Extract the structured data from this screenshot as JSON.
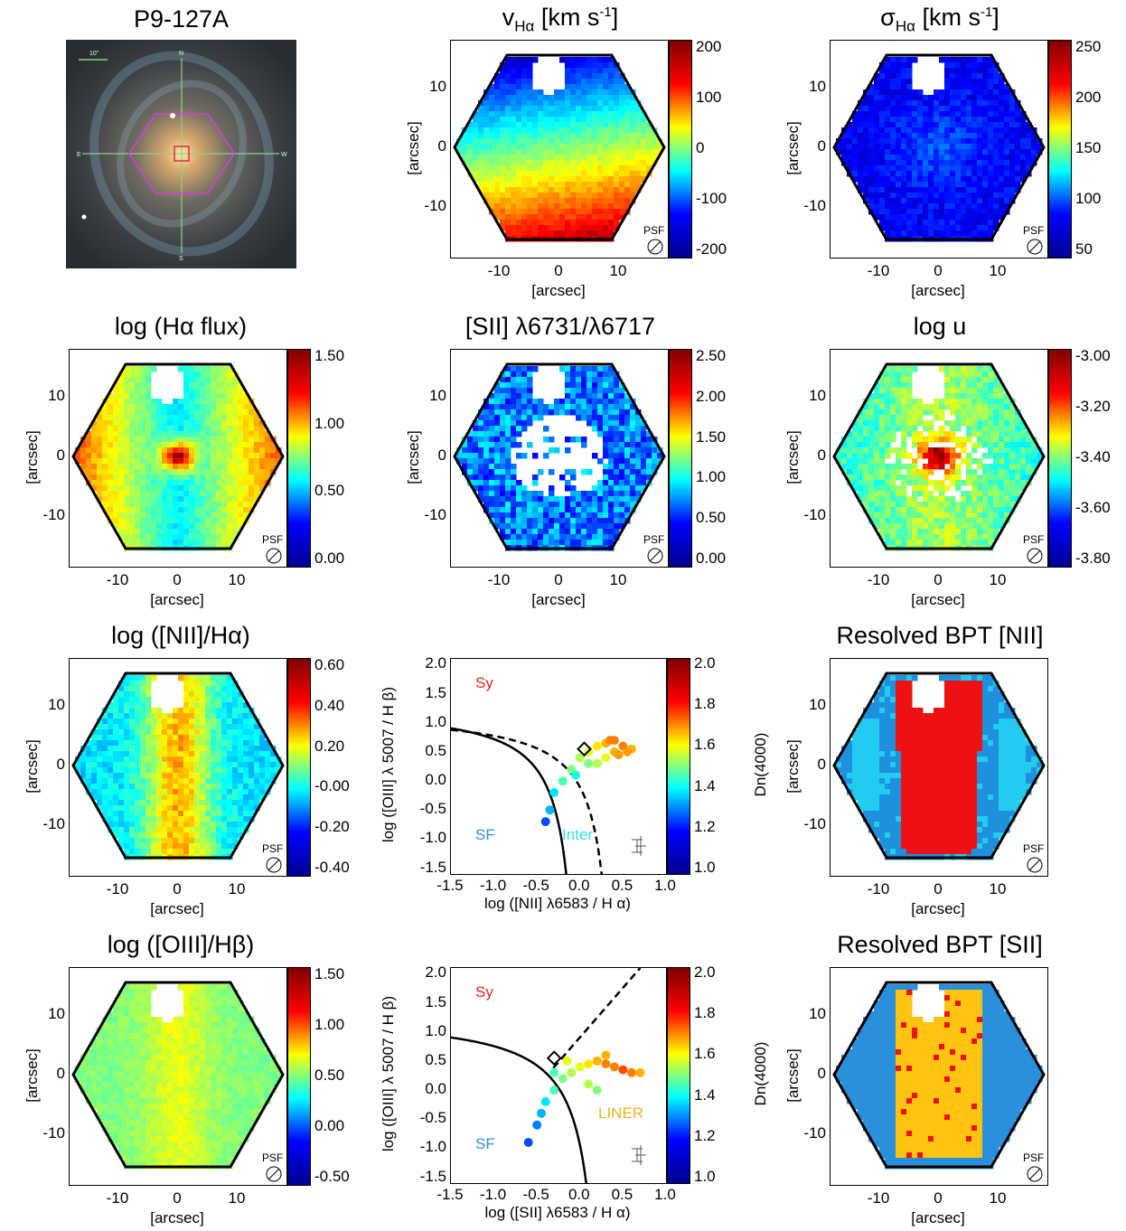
{
  "figure": {
    "thumbnail": {
      "title": "P9-127A",
      "scale_label": "10\"",
      "compass": {
        "n": "N",
        "s": "S",
        "e": "E",
        "w": "W"
      }
    },
    "axes_common": {
      "arcsec_label": "[arcsec]",
      "x_ticks": [
        "-10",
        "0",
        "10"
      ],
      "y_ticks": [
        "10",
        "0",
        "-10"
      ],
      "psf_label": "PSF"
    },
    "maps": [
      {
        "key": "vel",
        "title_main": "v",
        "title_sub": "Hα",
        "title_rest": " [km s",
        "title_sup": "-1",
        "title_end": "]",
        "cbar_ticks": [
          "200",
          "100",
          "0",
          "-100",
          "-200"
        ],
        "show_x_axis": true
      },
      {
        "key": "sigma",
        "title_main": "σ",
        "title_sub": "Hα",
        "title_rest": " [km s",
        "title_sup": "-1",
        "title_end": "]",
        "cbar_ticks": [
          "250",
          "200",
          "150",
          "100",
          "50"
        ],
        "show_x_axis": true
      },
      {
        "key": "haflux",
        "title_main": "log (Hα flux)",
        "cbar_ticks": [
          "1.50",
          "1.00",
          "0.50",
          "0.00"
        ],
        "show_x_axis": true
      },
      {
        "key": "sii",
        "title_main": "[SII] λ6731/λ6717",
        "cbar_ticks": [
          "2.50",
          "2.00",
          "1.50",
          "1.00",
          "0.50",
          "0.00"
        ],
        "show_x_axis": true
      },
      {
        "key": "logu",
        "title_main": "log u",
        "cbar_ticks": [
          "-3.00",
          "-3.20",
          "-3.40",
          "-3.60",
          "-3.80"
        ],
        "show_x_axis": true
      },
      {
        "key": "nii",
        "title_main": "log ([NII]/Hα)",
        "cbar_ticks": [
          "0.60",
          "0.40",
          "0.20",
          "-0.00",
          "-0.20",
          "-0.40"
        ],
        "show_x_axis": true
      },
      {
        "key": "bptnii",
        "title_main": "Resolved BPT [NII]",
        "show_x_axis": true
      },
      {
        "key": "oiii",
        "title_main": "log ([OIII]/Hβ)",
        "cbar_ticks": [
          "1.50",
          "1.00",
          "0.50",
          "0.00",
          "-0.50"
        ],
        "show_x_axis": true
      },
      {
        "key": "bptsii",
        "title_main": "Resolved BPT [SII]",
        "show_x_axis": true
      }
    ],
    "bpt_plots": [
      {
        "key": "bpt1",
        "xlabel": "log ([NII] λ6583 / H α)",
        "ylabel": "log ([OIII] λ 5007 / H β)",
        "cbar_label": "Dn(4000)",
        "cbar_ticks": [
          "2.0",
          "1.8",
          "1.6",
          "1.4",
          "1.2",
          "1.0"
        ],
        "x_ticks": [
          "-1.5",
          "-1.0",
          "-0.5",
          "0.0",
          "0.5",
          "1.0"
        ],
        "y_ticks": [
          "2.0",
          "1.5",
          "1.0",
          "0.5",
          "0.0",
          "-0.5",
          "-1.0",
          "-1.5"
        ],
        "labels": {
          "sy": "Sy",
          "sf": "SF",
          "third": "Inter"
        }
      },
      {
        "key": "bpt2",
        "xlabel": "log ([SII] λ6583 / H α)",
        "ylabel": "log ([OIII] λ 5007 / H β)",
        "cbar_label": "Dn(4000)",
        "cbar_ticks": [
          "2.0",
          "1.8",
          "1.6",
          "1.4",
          "1.2",
          "1.0"
        ],
        "x_ticks": [
          "-1.5",
          "-1.0",
          "-0.5",
          "0.0",
          "0.5",
          "1.0"
        ],
        "y_ticks": [
          "2.0",
          "1.5",
          "1.0",
          "0.5",
          "0.0",
          "-0.5",
          "-1.0",
          "-1.5"
        ],
        "labels": {
          "sy": "Sy",
          "sf": "SF",
          "third": "LINER"
        }
      }
    ]
  },
  "chart_data": [
    {
      "type": "scatter",
      "xlabel": "log ([NII] λ6583 / H α)",
      "ylabel": "log ([OIII] λ 5007 / H β)",
      "xlim": [
        -1.5,
        1.0
      ],
      "ylim": [
        -1.6,
        2.1
      ],
      "colorbar": "Dn(4000)",
      "clim": [
        1.0,
        2.0
      ],
      "series": [
        {
          "x": [
            -0.4,
            -0.35,
            -0.3,
            -0.2,
            -0.1,
            0.0,
            0.1,
            0.2,
            0.3,
            0.4,
            0.5,
            0.6,
            0.2,
            0.3,
            0.4,
            0.1,
            -0.05,
            0.45,
            0.35,
            0.55
          ],
          "y": [
            -0.7,
            -0.5,
            -0.2,
            0.0,
            0.2,
            0.4,
            0.5,
            0.6,
            0.65,
            0.7,
            0.6,
            0.55,
            0.3,
            0.4,
            0.5,
            0.3,
            0.1,
            0.45,
            0.7,
            0.5
          ],
          "c": [
            1.2,
            1.3,
            1.35,
            1.45,
            1.5,
            1.55,
            1.6,
            1.65,
            1.7,
            1.75,
            1.75,
            1.7,
            1.55,
            1.6,
            1.7,
            1.5,
            1.4,
            1.72,
            1.75,
            1.72
          ]
        }
      ],
      "marker": {
        "x": 0.05,
        "y": 0.55
      },
      "annotations": [
        "Sy",
        "SF",
        "Inter"
      ]
    },
    {
      "type": "scatter",
      "xlabel": "log ([SII] λ6583 / H α)",
      "ylabel": "log ([OIII] λ 5007 / H β)",
      "xlim": [
        -1.5,
        1.0
      ],
      "ylim": [
        -1.6,
        2.1
      ],
      "colorbar": "Dn(4000)",
      "clim": [
        1.0,
        2.0
      ],
      "series": [
        {
          "x": [
            -0.6,
            -0.5,
            -0.45,
            -0.4,
            -0.3,
            -0.2,
            -0.1,
            0.0,
            0.1,
            0.2,
            0.3,
            0.4,
            0.5,
            0.6,
            0.7,
            0.1,
            0.2,
            0.3,
            -0.3,
            -0.15
          ],
          "y": [
            -0.9,
            -0.6,
            -0.4,
            -0.2,
            0.0,
            0.2,
            0.3,
            0.4,
            0.45,
            0.5,
            0.45,
            0.4,
            0.35,
            0.3,
            0.3,
            0.1,
            0.0,
            0.6,
            0.3,
            0.5
          ],
          "c": [
            1.2,
            1.25,
            1.3,
            1.35,
            1.45,
            1.5,
            1.55,
            1.6,
            1.65,
            1.7,
            1.75,
            1.75,
            1.8,
            1.75,
            1.7,
            1.55,
            1.5,
            1.7,
            1.45,
            1.6
          ]
        }
      ],
      "marker": {
        "x": -0.3,
        "y": 0.55
      },
      "annotations": [
        "Sy",
        "SF",
        "LINER"
      ]
    }
  ]
}
